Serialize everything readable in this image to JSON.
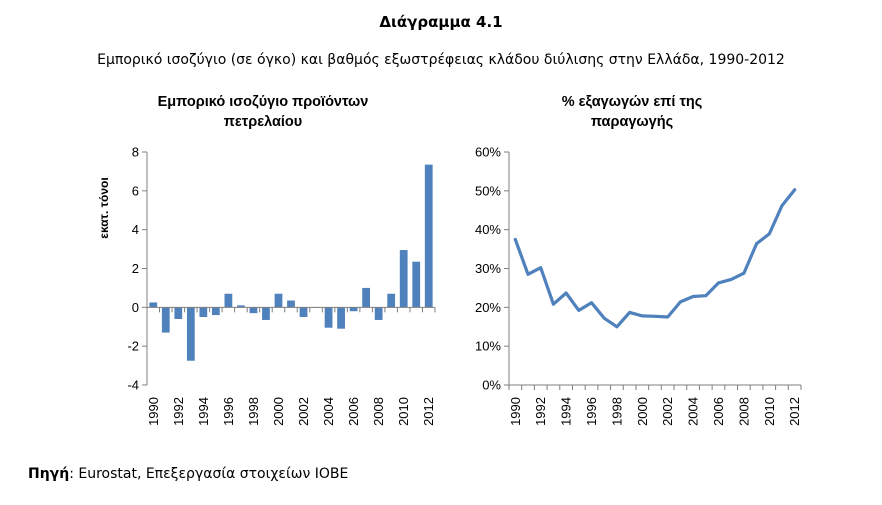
{
  "figure": {
    "title": "Διάγραμμα 4.1",
    "subtitle": "Εμπορικό ισοζύγιο (σε όγκο) και βαθμός εξωστρέφειας κλάδου διύλισης στην Ελλάδα, 1990-2012",
    "source_label": "Πηγή",
    "source_text": ": Eurostat, Επεξεργασία στοιχείων ΙΟΒΕ"
  },
  "chart_data": [
    {
      "type": "bar",
      "title_lines": [
        "Εμπορικό ισοζύγιο προϊόντων",
        "πετρελαίου"
      ],
      "ylabel": "εκατ. τόνοι",
      "ylim": [
        -4,
        8
      ],
      "yticks": [
        -4,
        -2,
        0,
        2,
        4,
        6,
        8
      ],
      "ytick_labels": [
        "-4",
        "-2",
        "0",
        "2",
        "4",
        "6",
        "8"
      ],
      "categories": [
        1990,
        1991,
        1992,
        1993,
        1994,
        1995,
        1996,
        1997,
        1998,
        1999,
        2000,
        2001,
        2002,
        2003,
        2004,
        2005,
        2006,
        2007,
        2008,
        2009,
        2010,
        2011,
        2012
      ],
      "xtick_labels": [
        "1990",
        "1992",
        "1994",
        "1996",
        "1998",
        "2000",
        "2002",
        "2004",
        "2006",
        "2008",
        "2010",
        "2012"
      ],
      "values": [
        0.25,
        -1.3,
        -0.6,
        -2.75,
        -0.5,
        -0.4,
        0.7,
        0.1,
        -0.3,
        -0.65,
        0.7,
        0.35,
        -0.5,
        0.0,
        -1.05,
        -1.1,
        -0.2,
        1.0,
        -0.65,
        0.7,
        2.95,
        2.35,
        7.35
      ],
      "color": "#4f81bd"
    },
    {
      "type": "line",
      "title_lines": [
        "% εξαγωγών επί της",
        "παραγωγής"
      ],
      "ylim": [
        0,
        60
      ],
      "yticks": [
        0,
        10,
        20,
        30,
        40,
        50,
        60
      ],
      "ytick_labels": [
        "0%",
        "10%",
        "20%",
        "30%",
        "40%",
        "50%",
        "60%"
      ],
      "x": [
        1990,
        1991,
        1992,
        1993,
        1994,
        1995,
        1996,
        1997,
        1998,
        1999,
        2000,
        2001,
        2002,
        2003,
        2004,
        2005,
        2006,
        2007,
        2008,
        2009,
        2010,
        2011,
        2012
      ],
      "xtick_labels": [
        "1990",
        "1992",
        "1994",
        "1996",
        "1998",
        "2000",
        "2002",
        "2004",
        "2006",
        "2008",
        "2010",
        "2012"
      ],
      "values": [
        37.5,
        28.5,
        30.2,
        20.8,
        23.7,
        19.2,
        21.2,
        17.2,
        15.0,
        18.7,
        17.8,
        17.7,
        17.5,
        21.4,
        22.8,
        23.0,
        26.3,
        27.2,
        28.8,
        36.4,
        38.9,
        46.2,
        50.3
      ],
      "color": "#4f81bd"
    }
  ]
}
